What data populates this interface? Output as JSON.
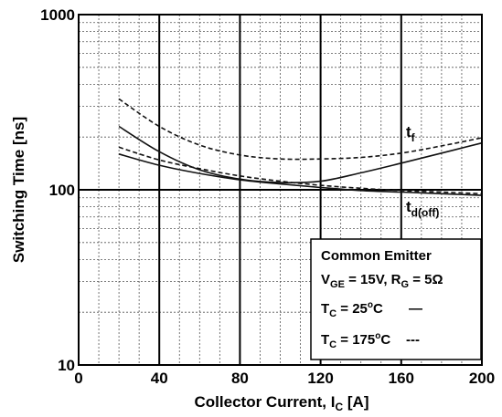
{
  "chart_data": {
    "type": "line",
    "y_scale": "log",
    "xlim": [
      0,
      200
    ],
    "ylim": [
      10,
      1000
    ],
    "x_ticks": [
      "0",
      "40",
      "80",
      "120",
      "160",
      "200"
    ],
    "y_ticks": [
      "10",
      "100",
      "1000"
    ],
    "xlabel": {
      "main": "Collector Current, I",
      "sub": "C",
      "unit": " [A]"
    },
    "ylabel": "Switching Time [ns]",
    "grid": "log-minor dashed, major solid",
    "series": [
      {
        "name": "tf",
        "label_main": "t",
        "label_sub": "f",
        "temp": "25C",
        "style": "solid",
        "x": [
          20,
          40,
          60,
          80,
          100,
          120,
          140,
          160,
          180,
          200
        ],
        "y": [
          230,
          165,
          130,
          115,
          110,
          112,
          125,
          142,
          162,
          185
        ]
      },
      {
        "name": "tf",
        "label_main": "t",
        "label_sub": "f",
        "temp": "175C",
        "style": "dashed",
        "x": [
          20,
          40,
          60,
          80,
          100,
          120,
          140,
          160,
          180,
          200
        ],
        "y": [
          330,
          230,
          180,
          158,
          150,
          150,
          153,
          162,
          178,
          198
        ]
      },
      {
        "name": "td(off)",
        "label_main": "t",
        "label_sub": "d(off)",
        "temp": "25C",
        "style": "solid",
        "x": [
          20,
          40,
          60,
          80,
          100,
          120,
          140,
          160,
          180,
          200
        ],
        "y": [
          160,
          138,
          124,
          114,
          108,
          103,
          99,
          97,
          95,
          93
        ]
      },
      {
        "name": "td(off)",
        "label_main": "t",
        "label_sub": "d(off)",
        "temp": "175C",
        "style": "dashed",
        "x": [
          20,
          40,
          60,
          80,
          100,
          120,
          140,
          160,
          180,
          200
        ],
        "y": [
          175,
          148,
          132,
          120,
          112,
          106,
          102,
          99,
          97,
          95
        ]
      }
    ],
    "legend": {
      "position": "bottom-right",
      "title": "Common Emitter",
      "cond_a_main": "V",
      "cond_a_sub": "GE",
      "cond_a_rest": " = 15V, R",
      "cond_b_sub": "G",
      "cond_b_rest": " = 5Ω",
      "t1_main": "T",
      "t1_sub": "C",
      "t1_rest": " = 25",
      "t1_sup": "o",
      "t1_unit": "C",
      "t1_line": "—",
      "t2_main": "T",
      "t2_sub": "C",
      "t2_rest": " = 175",
      "t2_sup": "o",
      "t2_unit": "C",
      "t2_line": "---"
    }
  }
}
